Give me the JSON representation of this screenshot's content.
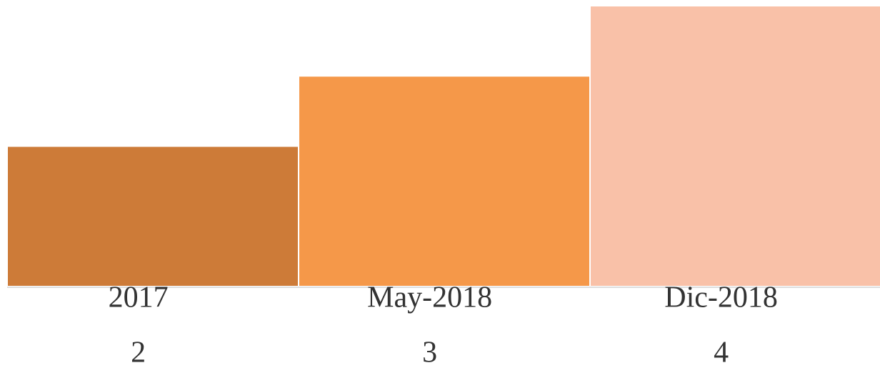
{
  "chart_data": {
    "type": "bar",
    "categories": [
      "2017",
      "May-2018",
      "Dic-2018"
    ],
    "values": [
      2,
      3,
      4
    ],
    "colors": [
      "#cd7b38",
      "#f59849",
      "#f9c1a8"
    ]
  }
}
